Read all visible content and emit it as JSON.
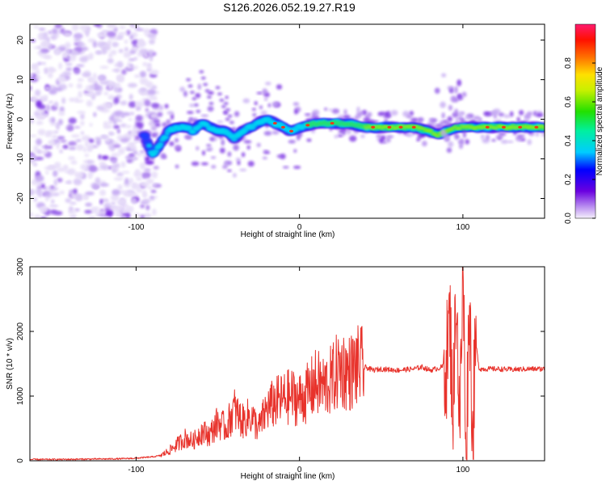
{
  "title": "S126.2026.052.19.27.R19",
  "colors": {
    "snr_line": "#e8332c",
    "axis": "#000000"
  },
  "chart_data": [
    {
      "type": "heatmap",
      "name": "spectrogram",
      "xlabel": "Height of straight line (km)",
      "ylabel": "Frequency (Hz)",
      "xlim": [
        -165,
        150
      ],
      "ylim": [
        -25,
        24
      ],
      "x_ticks": [
        -100,
        0,
        100
      ],
      "y_ticks": [
        -20,
        -10,
        0,
        10,
        20
      ],
      "colorbar": {
        "label": "Normalized spectral amplitude",
        "range": [
          0,
          1
        ],
        "ticks": [
          "0.0",
          "0.2",
          "0.4",
          "0.6",
          "0.8"
        ]
      },
      "ridge": {
        "x": [
          -95,
          -90,
          -85,
          -80,
          -75,
          -70,
          -65,
          -60,
          -55,
          -50,
          -45,
          -40,
          -35,
          -30,
          -25,
          -20,
          -15,
          -10,
          -5,
          0,
          10,
          20,
          30,
          40,
          50,
          60,
          70,
          80,
          85,
          90,
          95,
          100,
          110,
          120,
          130,
          140,
          150
        ],
        "y": [
          -4,
          -9,
          -6,
          -3,
          -2,
          -2,
          -3,
          -1,
          -2,
          -3,
          -3,
          -5,
          -3,
          -2,
          -1,
          0,
          -1,
          -2,
          -3,
          -2,
          -1,
          -1,
          -1,
          -2,
          -2,
          -2,
          -2,
          -3,
          -4,
          -3,
          -2,
          -2,
          -2,
          -2,
          -2,
          -2,
          -2
        ]
      }
    },
    {
      "type": "line",
      "name": "snr",
      "xlabel": "Height of straight line (km)",
      "ylabel": "SNR (10 * v/v)",
      "xlim": [
        -165,
        150
      ],
      "ylim": [
        0,
        3000
      ],
      "x_ticks": [
        -100,
        0,
        100
      ],
      "y_ticks": [
        0,
        1000,
        2000,
        3000
      ],
      "series": [
        {
          "name": "SNR",
          "x": [
            -165,
            -150,
            -130,
            -110,
            -100,
            -90,
            -85,
            -80,
            -75,
            -70,
            -65,
            -60,
            -55,
            -50,
            -45,
            -40,
            -35,
            -30,
            -25,
            -20,
            -15,
            -10,
            -5,
            0,
            5,
            10,
            15,
            20,
            25,
            30,
            35,
            40,
            45,
            50,
            60,
            70,
            75,
            80,
            85,
            88,
            90,
            92,
            94,
            96,
            98,
            100,
            102,
            104,
            106,
            108,
            110,
            120,
            130,
            140,
            150
          ],
          "y": [
            20,
            20,
            25,
            30,
            40,
            60,
            80,
            150,
            250,
            350,
            300,
            450,
            400,
            600,
            500,
            800,
            600,
            700,
            500,
            800,
            900,
            950,
            1000,
            950,
            1050,
            1200,
            1150,
            1250,
            1450,
            1350,
            1450,
            1450,
            1400,
            1420,
            1400,
            1420,
            1450,
            1400,
            1430,
            1460,
            1550,
            2200,
            800,
            2800,
            400,
            2900,
            300,
            2500,
            500,
            1800,
            1420,
            1420,
            1410,
            1420,
            1420
          ]
        }
      ]
    }
  ]
}
